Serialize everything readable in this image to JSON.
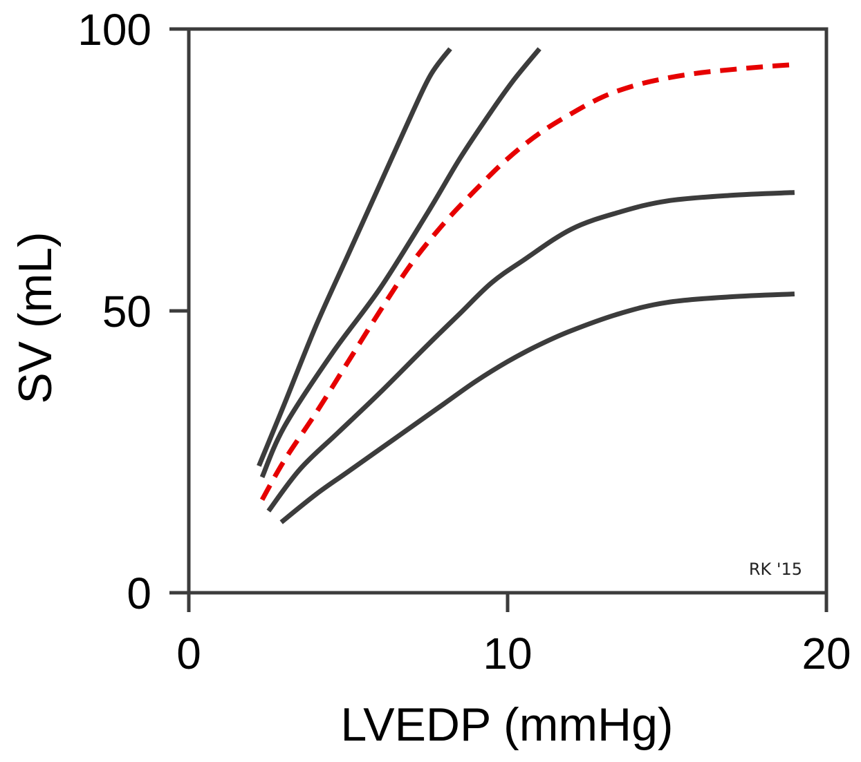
{
  "chart_data": {
    "type": "line",
    "xlabel": "LVEDP (mmHg)",
    "ylabel": "SV (mL)",
    "xlim": [
      0,
      20
    ],
    "ylim": [
      0,
      100
    ],
    "xticks": [
      0,
      10,
      20
    ],
    "yticks": [
      0,
      50,
      100
    ],
    "grid": false,
    "annotation": "RK '15",
    "colors": {
      "axis": "#3c3c3c",
      "curve": "#3c3c3c",
      "highlight": "#e60000"
    },
    "series": [
      {
        "style": "solid",
        "color": "#3c3c3c",
        "x": [
          2.2,
          3.0,
          4.0,
          5.0,
          6.0,
          7.0,
          7.6,
          8.2
        ],
        "y": [
          22.5,
          33.5,
          47.5,
          60.0,
          72.5,
          85.0,
          92.0,
          96.5
        ]
      },
      {
        "style": "solid",
        "color": "#3c3c3c",
        "x": [
          2.3,
          3.0,
          4.5,
          6.0,
          7.5,
          8.5,
          9.5,
          10.2,
          11.0
        ],
        "y": [
          20.5,
          29.5,
          42.5,
          54.0,
          67.5,
          77.0,
          85.5,
          91.0,
          96.5
        ]
      },
      {
        "style": "dashed",
        "color": "#e60000",
        "x": [
          2.3,
          3.0,
          4.0,
          5.0,
          6.0,
          7.0,
          8.0,
          9.0,
          10.0,
          11.0,
          12.0,
          13.0,
          14.0,
          15.0,
          16.0,
          17.0,
          18.0,
          19.0
        ],
        "y": [
          16.5,
          23.5,
          32.0,
          41.0,
          50.0,
          58.5,
          65.5,
          71.5,
          77.0,
          81.5,
          85.0,
          88.0,
          90.0,
          91.3,
          92.2,
          92.8,
          93.3,
          93.7
        ]
      },
      {
        "style": "solid",
        "color": "#3c3c3c",
        "x": [
          2.5,
          3.5,
          4.7,
          6.0,
          7.5,
          8.5,
          9.5,
          10.5,
          12.0,
          13.5,
          15.0,
          17.0,
          19.0
        ],
        "y": [
          14.5,
          22.0,
          28.5,
          35.5,
          44.0,
          49.5,
          55.0,
          59.0,
          64.5,
          67.5,
          69.5,
          70.5,
          71.0
        ]
      },
      {
        "style": "solid",
        "color": "#3c3c3c",
        "x": [
          2.9,
          4.0,
          5.0,
          6.5,
          8.0,
          9.0,
          10.0,
          11.0,
          12.0,
          13.5,
          15.0,
          17.0,
          19.0
        ],
        "y": [
          12.5,
          17.5,
          21.5,
          27.5,
          33.5,
          37.5,
          41.0,
          44.0,
          46.5,
          49.5,
          51.5,
          52.5,
          53.0
        ]
      }
    ]
  }
}
